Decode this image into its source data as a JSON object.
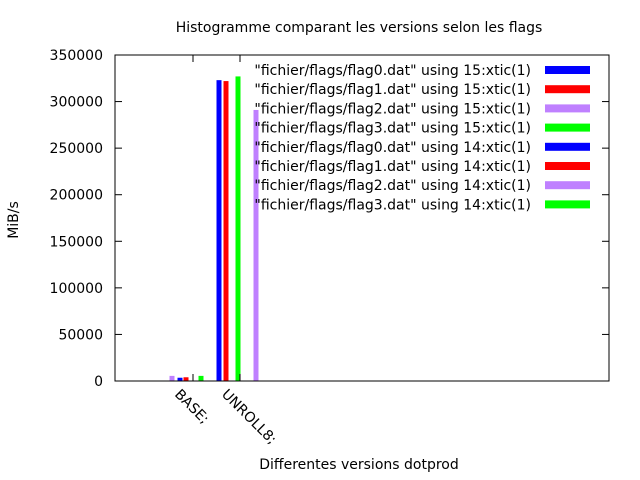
{
  "chart_data": {
    "type": "bar",
    "title": "Histogramme comparant les versions selon les flags",
    "xlabel": "Differentes versions dotprod",
    "ylabel": "MiB/s",
    "ylim": [
      0,
      350000
    ],
    "yticks": [
      0,
      50000,
      100000,
      150000,
      200000,
      250000,
      300000,
      350000
    ],
    "yticklabels": [
      "0",
      "50000",
      "100000",
      "150000",
      "200000",
      "250000",
      "300000",
      "350000"
    ],
    "categories": [
      "BASE;",
      "UNROLL8;"
    ],
    "grid": false,
    "legend_position": "top-right",
    "series": [
      {
        "name": "\"fichier/flags/flag0.dat\"  using 15:xtic(1)",
        "color": "#0000ff",
        "values": [
          3500,
          323000
        ]
      },
      {
        "name": "\"fichier/flags/flag1.dat\" using 15:xtic(1)",
        "color": "#ff0000",
        "values": [
          4000,
          322000
        ]
      },
      {
        "name": "\"fichier/flags/flag2.dat\" using 15:xtic(1)",
        "color": "#bf80ff",
        "values": [
          5500,
          291000
        ]
      },
      {
        "name": "\"fichier/flags/flag3.dat\" using 15:xtic(1)",
        "color": "#00ff00",
        "values": [
          5500,
          327000
        ]
      },
      {
        "name": "\"fichier/flags/flag0.dat\"  using 14:xtic(1)",
        "color": "#0000ff",
        "values": [
          null,
          null
        ]
      },
      {
        "name": "\"fichier/flags/flag1.dat\" using 14:xtic(1)",
        "color": "#ff0000",
        "values": [
          null,
          null
        ]
      },
      {
        "name": "\"fichier/flags/flag2.dat\" using 14:xtic(1)",
        "color": "#bf80ff",
        "values": [
          null,
          null
        ]
      },
      {
        "name": "\"fichier/flags/flag3.dat\" using 14:xtic(1)",
        "color": "#00ff00",
        "values": [
          null,
          null
        ]
      }
    ]
  }
}
